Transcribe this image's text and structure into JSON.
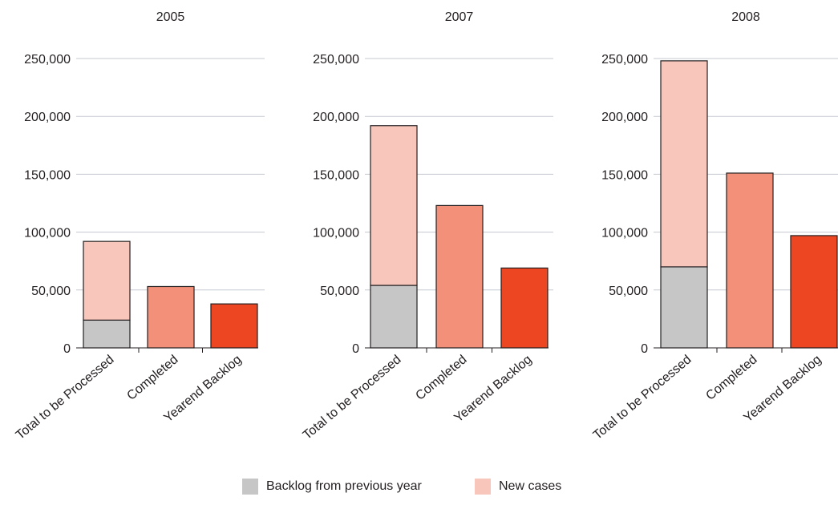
{
  "colors": {
    "backlog": "#c6c6c6",
    "new_cases": "#f9c6bc",
    "completed": "#f29079",
    "yearend_backlog": "#ed4622",
    "grid": "#c4c9d0",
    "axis": "#231f20"
  },
  "legend": [
    {
      "key": "backlog",
      "label": "Backlog from previous year"
    },
    {
      "key": "new_cases",
      "label": "New cases"
    }
  ],
  "chart_data": [
    {
      "type": "bar",
      "title": "2005",
      "categories": [
        "Total to be Processed",
        "Completed",
        "Yearend Backlog"
      ],
      "ylim": [
        0,
        250000
      ],
      "yticks": [
        0,
        50000,
        100000,
        150000,
        200000,
        250000
      ],
      "ytick_labels": [
        "0",
        "50,000",
        "100,000",
        "150,000",
        "200,000",
        "250,000"
      ],
      "series": [
        {
          "name": "Backlog from previous year",
          "values": [
            24000,
            null,
            null
          ]
        },
        {
          "name": "New cases",
          "values": [
            68000,
            null,
            null
          ]
        },
        {
          "values": [
            null,
            53000,
            null
          ]
        },
        {
          "values": [
            null,
            null,
            38000
          ]
        }
      ]
    },
    {
      "type": "bar",
      "title": "2007",
      "categories": [
        "Total to be Processed",
        "Completed",
        "Yearend Backlog"
      ],
      "ylim": [
        0,
        250000
      ],
      "yticks": [
        0,
        50000,
        100000,
        150000,
        200000,
        250000
      ],
      "ytick_labels": [
        "0",
        "50,000",
        "100,000",
        "150,000",
        "200,000",
        "250,000"
      ],
      "series": [
        {
          "name": "Backlog from previous year",
          "values": [
            54000,
            null,
            null
          ]
        },
        {
          "name": "New cases",
          "values": [
            138000,
            null,
            null
          ]
        },
        {
          "values": [
            null,
            123000,
            null
          ]
        },
        {
          "values": [
            null,
            null,
            69000
          ]
        }
      ]
    },
    {
      "type": "bar",
      "title": "2008",
      "categories": [
        "Total to be Processed",
        "Completed",
        "Yearend Backlog"
      ],
      "ylim": [
        0,
        250000
      ],
      "yticks": [
        0,
        50000,
        100000,
        150000,
        200000,
        250000
      ],
      "ytick_labels": [
        "0",
        "50,000",
        "100,000",
        "150,000",
        "200,000",
        "250,000"
      ],
      "series": [
        {
          "name": "Backlog from previous year",
          "values": [
            70000,
            null,
            null
          ]
        },
        {
          "name": "New cases",
          "values": [
            178000,
            null,
            null
          ]
        },
        {
          "values": [
            null,
            151000,
            null
          ]
        },
        {
          "values": [
            null,
            null,
            97000
          ]
        }
      ]
    }
  ]
}
